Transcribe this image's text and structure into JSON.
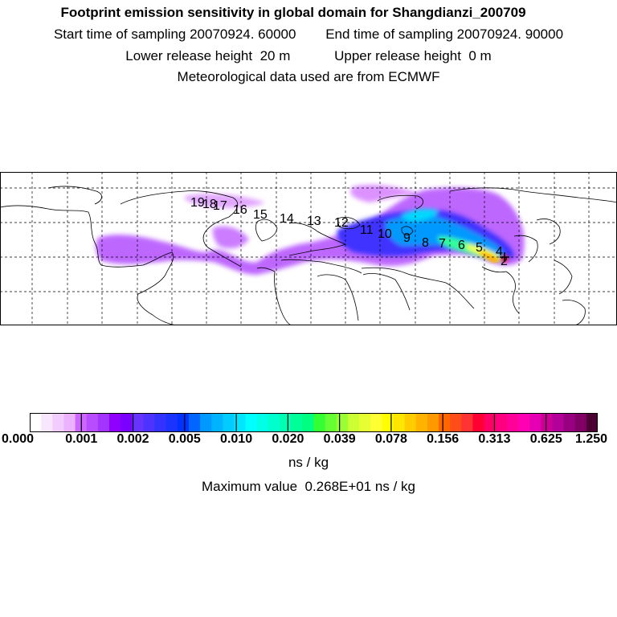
{
  "header": {
    "title": "Footprint emission sensitivity in global domain for Shangdianzi_200709",
    "start_label": "Start time of sampling",
    "start_value": "20070924. 60000",
    "end_label": "End time of sampling",
    "end_value": "20070924. 90000",
    "lower_label": "Lower release height",
    "lower_value": "20 m",
    "upper_label": "Upper release height",
    "upper_value": "0 m",
    "met_note": "Meteorological data used are from ECMWF"
  },
  "trajectory_labels": [
    "2",
    "4",
    "5",
    "6",
    "7",
    "8",
    "9",
    "10",
    "11",
    "12",
    "13",
    "14",
    "15",
    "16",
    "17",
    "18",
    "19"
  ],
  "colorbar": {
    "tick_labels": [
      "0.000",
      "0.001",
      "0.002",
      "0.005",
      "0.010",
      "0.020",
      "0.039",
      "0.078",
      "0.156",
      "0.313",
      "0.625",
      "1.250"
    ],
    "colors": [
      "#ffffff",
      "#f8e6ff",
      "#f2ccff",
      "#ebb3ff",
      "#cc66ff",
      "#b84dff",
      "#a333ff",
      "#8f00ff",
      "#7a00ff",
      "#6633ff",
      "#4d33ff",
      "#3333ff",
      "#1a33ff",
      "#0033ff",
      "#0066ff",
      "#0099ff",
      "#00b3ff",
      "#00ccff",
      "#00e6ff",
      "#00ffff",
      "#00ffe6",
      "#00ffcc",
      "#00ffb3",
      "#00ff99",
      "#00ff80",
      "#33ff33",
      "#66ff33",
      "#99ff33",
      "#ccff33",
      "#e6ff33",
      "#ffff33",
      "#ffff00",
      "#ffe600",
      "#ffcc00",
      "#ffb300",
      "#ff9900",
      "#ff6600",
      "#ff4d1a",
      "#ff3333",
      "#ff0033",
      "#ff0066",
      "#ff0080",
      "#ff0099",
      "#ff00b3",
      "#e600b3",
      "#cc0099",
      "#b30099",
      "#990080",
      "#800066",
      "#4d0033"
    ],
    "unit": "ns / kg",
    "max_label": "Maximum value",
    "max_value": "0.268E+01 ns / kg"
  }
}
